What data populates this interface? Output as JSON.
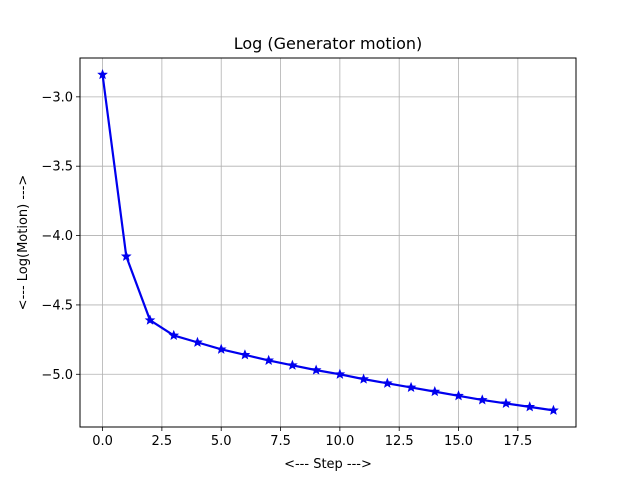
{
  "chart_data": {
    "type": "line",
    "title": "Log (Generator motion)",
    "xlabel": "<--- Step --->",
    "ylabel": "<--- Log(Motion) --->",
    "x": [
      0,
      1,
      2,
      3,
      4,
      5,
      6,
      7,
      8,
      9,
      10,
      11,
      12,
      13,
      14,
      15,
      16,
      17,
      18,
      19
    ],
    "series": [
      {
        "values": [
          -2.84,
          -4.15,
          -4.61,
          -4.72,
          -4.77,
          -4.82,
          -4.86,
          -4.9,
          -4.935,
          -4.97,
          -5.0,
          -5.035,
          -5.065,
          -5.095,
          -5.125,
          -5.155,
          -5.185,
          -5.21,
          -5.235,
          -5.26
        ],
        "color": "#0000ee",
        "marker": "star"
      }
    ],
    "xlim": [
      -0.95,
      19.95
    ],
    "ylim": [
      -5.38,
      -2.72
    ],
    "xticks": [
      0,
      2.5,
      5,
      7.5,
      10,
      12.5,
      15,
      17.5
    ],
    "xtick_labels": [
      "0.0",
      "2.5",
      "5.0",
      "7.5",
      "10.0",
      "12.5",
      "15.0",
      "17.5"
    ],
    "yticks": [
      -3.0,
      -3.5,
      -4.0,
      -4.5,
      -5.0
    ],
    "ytick_labels": [
      "−3.0",
      "−3.5",
      "−4.0",
      "−4.5",
      "−5.0"
    ],
    "grid": true,
    "grid_color": "#b0b0b0",
    "legend": "none"
  }
}
